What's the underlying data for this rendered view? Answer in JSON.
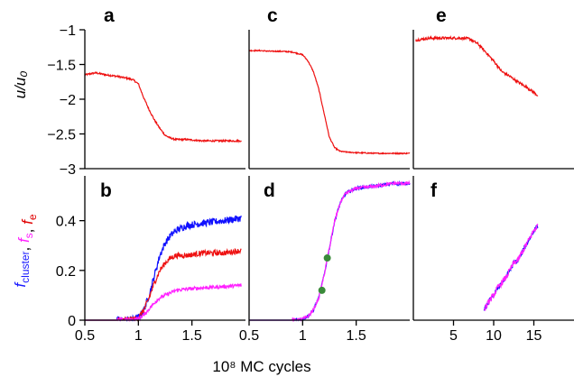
{
  "figure": {
    "xlabel": "10⁸ MC  cycles",
    "ylabel_top": "u/u₀",
    "ylabel_bottom": {
      "parts": [
        {
          "text": "f",
          "sub": "cluster",
          "color": "#1a1aff"
        },
        {
          "text": ", ",
          "sub": "",
          "color": "#000000"
        },
        {
          "text": "f",
          "sub": "s",
          "color": "#ff20ff"
        },
        {
          "text": ", ",
          "sub": "",
          "color": "#000000"
        },
        {
          "text": "f",
          "sub": "e",
          "color": "#e00000"
        }
      ]
    }
  },
  "colors": {
    "blue": "#1010ff",
    "red": "#ee1010",
    "magenta": "#ff20ff",
    "marker": "#3a8a3a",
    "axis": "#000000"
  },
  "chart_data": [
    {
      "panel": "a",
      "type": "line",
      "xlim": [
        0.5,
        2.0
      ],
      "ylim": [
        -3,
        -1
      ],
      "xticks": [],
      "yticks": [
        -1,
        -1.5,
        -2,
        -2.5,
        -3
      ],
      "ytick_labels": [
        "−1",
        "−1.5",
        "−2",
        "−2.5",
        "−3"
      ],
      "series": [
        {
          "color": "red",
          "noise": 0.012,
          "x": [
            0.5,
            0.6,
            0.7,
            0.8,
            0.9,
            0.95,
            1.0,
            1.05,
            1.1,
            1.15,
            1.2,
            1.25,
            1.3,
            1.35,
            1.45,
            1.6,
            1.8,
            1.96
          ],
          "y": [
            -1.65,
            -1.62,
            -1.65,
            -1.67,
            -1.7,
            -1.72,
            -1.78,
            -1.98,
            -2.15,
            -2.3,
            -2.42,
            -2.52,
            -2.56,
            -2.58,
            -2.58,
            -2.6,
            -2.6,
            -2.6
          ]
        }
      ]
    },
    {
      "panel": "c",
      "type": "line",
      "xlim": [
        0.5,
        2.0
      ],
      "ylim": [
        -3,
        -1
      ],
      "xticks": [],
      "yticks": [],
      "series": [
        {
          "color": "red",
          "noise": 0.008,
          "x": [
            0.5,
            0.6,
            0.7,
            0.8,
            0.9,
            1.0,
            1.05,
            1.1,
            1.15,
            1.2,
            1.25,
            1.3,
            1.35,
            1.4,
            1.5,
            1.7,
            1.85,
            2.0
          ],
          "y": [
            -1.3,
            -1.3,
            -1.31,
            -1.31,
            -1.32,
            -1.36,
            -1.45,
            -1.6,
            -1.85,
            -2.2,
            -2.55,
            -2.7,
            -2.75,
            -2.76,
            -2.77,
            -2.78,
            -2.78,
            -2.78
          ]
        }
      ]
    },
    {
      "panel": "e",
      "type": "line",
      "xlim": [
        0,
        20
      ],
      "ylim": [
        -3,
        -1
      ],
      "xticks": [],
      "yticks": [],
      "series": [
        {
          "color": "red",
          "noise": 0.018,
          "x": [
            0.3,
            2,
            4,
            6,
            7,
            8,
            9,
            10,
            11,
            12,
            13,
            14,
            15,
            15.5
          ],
          "y": [
            -1.15,
            -1.12,
            -1.12,
            -1.12,
            -1.13,
            -1.2,
            -1.32,
            -1.45,
            -1.6,
            -1.67,
            -1.75,
            -1.82,
            -1.9,
            -1.95
          ]
        }
      ]
    },
    {
      "panel": "b",
      "type": "line",
      "xlim": [
        0.5,
        2.0
      ],
      "ylim": [
        0,
        0.58
      ],
      "xticks": [
        0.5,
        1,
        1.5
      ],
      "xtick_labels": [
        "0.5",
        "1",
        "1.5"
      ],
      "yticks": [
        0,
        0.2,
        0.4
      ],
      "ytick_labels": [
        "0",
        "0.2",
        "0.4"
      ],
      "series": [
        {
          "color": "blue",
          "noise": 0.014,
          "x": [
            0.5,
            0.8,
            0.95,
            1.0,
            1.05,
            1.1,
            1.15,
            1.2,
            1.25,
            1.3,
            1.35,
            1.45,
            1.6,
            1.8,
            1.96
          ],
          "y": [
            0,
            0,
            0.003,
            0.01,
            0.04,
            0.1,
            0.18,
            0.26,
            0.31,
            0.34,
            0.36,
            0.38,
            0.39,
            0.4,
            0.41
          ]
        },
        {
          "color": "red",
          "noise": 0.011,
          "x": [
            0.5,
            0.8,
            0.95,
            1.0,
            1.05,
            1.1,
            1.15,
            1.2,
            1.25,
            1.3,
            1.35,
            1.45,
            1.6,
            1.8,
            1.96
          ],
          "y": [
            0,
            0,
            0.003,
            0.01,
            0.04,
            0.09,
            0.15,
            0.2,
            0.23,
            0.25,
            0.26,
            0.26,
            0.27,
            0.27,
            0.28
          ]
        },
        {
          "color": "magenta",
          "noise": 0.007,
          "x": [
            0.5,
            0.8,
            0.95,
            1.0,
            1.05,
            1.1,
            1.15,
            1.2,
            1.25,
            1.3,
            1.35,
            1.45,
            1.6,
            1.8,
            1.96
          ],
          "y": [
            0,
            0,
            0.002,
            0.006,
            0.02,
            0.045,
            0.07,
            0.09,
            0.1,
            0.11,
            0.12,
            0.125,
            0.13,
            0.135,
            0.14
          ]
        }
      ]
    },
    {
      "panel": "d",
      "type": "line",
      "xlim": [
        0.5,
        2.0
      ],
      "ylim": [
        0,
        0.58
      ],
      "xticks": [
        0.5,
        1,
        1.5
      ],
      "xtick_labels": [
        "0.5",
        "1",
        "1.5"
      ],
      "yticks": [],
      "series": [
        {
          "color": "blue",
          "noise": 0.006,
          "x": [
            0.5,
            0.9,
            1.0,
            1.05,
            1.1,
            1.15,
            1.2,
            1.25,
            1.3,
            1.35,
            1.4,
            1.5,
            1.7,
            1.85,
            2.0
          ],
          "y": [
            0,
            0,
            0.005,
            0.015,
            0.04,
            0.09,
            0.18,
            0.29,
            0.4,
            0.47,
            0.51,
            0.53,
            0.54,
            0.55,
            0.55
          ]
        },
        {
          "color": "magenta",
          "noise": 0.006,
          "x": [
            0.5,
            0.9,
            1.0,
            1.05,
            1.1,
            1.15,
            1.2,
            1.25,
            1.3,
            1.35,
            1.4,
            1.5,
            1.7,
            1.85,
            2.0
          ],
          "y": [
            0,
            0,
            0.005,
            0.015,
            0.04,
            0.09,
            0.18,
            0.29,
            0.4,
            0.47,
            0.51,
            0.53,
            0.54,
            0.55,
            0.55
          ]
        }
      ],
      "markers": [
        {
          "x": 1.18,
          "y": 0.12
        },
        {
          "x": 1.23,
          "y": 0.25
        }
      ]
    },
    {
      "panel": "f",
      "type": "line",
      "xlim": [
        0,
        20
      ],
      "ylim": [
        0,
        0.58
      ],
      "xticks": [
        5,
        10,
        15
      ],
      "xtick_labels": [
        "5",
        "10",
        "15"
      ],
      "yticks": [],
      "series": [
        {
          "color": "blue",
          "noise": 0.01,
          "x": [
            8.8,
            9.5,
            10,
            10.5,
            11,
            11.5,
            12,
            12.5,
            13,
            13.5,
            14,
            14.5,
            15,
            15.5
          ],
          "y": [
            0.04,
            0.08,
            0.1,
            0.13,
            0.15,
            0.17,
            0.2,
            0.23,
            0.24,
            0.27,
            0.3,
            0.33,
            0.36,
            0.38
          ]
        },
        {
          "color": "magenta",
          "noise": 0.012,
          "x": [
            8.8,
            9.5,
            10,
            10.5,
            11,
            11.5,
            12,
            12.5,
            13,
            13.5,
            14,
            14.5,
            15,
            15.5
          ],
          "y": [
            0.04,
            0.08,
            0.1,
            0.13,
            0.15,
            0.17,
            0.2,
            0.23,
            0.24,
            0.27,
            0.3,
            0.33,
            0.36,
            0.38
          ]
        }
      ]
    }
  ]
}
